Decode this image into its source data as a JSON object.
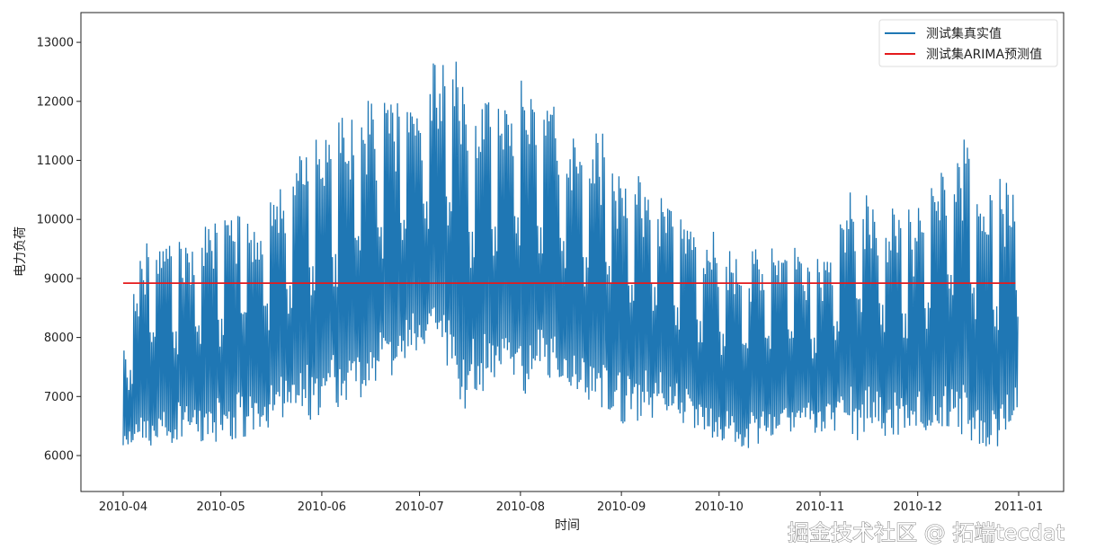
{
  "chart_data": {
    "type": "line",
    "title": "",
    "xlabel": "时间",
    "ylabel": "电力负荷",
    "xlim": [
      "2010-04-01",
      "2011-01-01"
    ],
    "ylim": [
      5400,
      13500
    ],
    "x_ticks": [
      "2010-04",
      "2010-05",
      "2010-06",
      "2010-07",
      "2010-08",
      "2010-09",
      "2010-10",
      "2010-11",
      "2010-12",
      "2011-01"
    ],
    "x_tick_dates": [
      "2010-04-01",
      "2010-05-01",
      "2010-06-01",
      "2010-07-01",
      "2010-08-01",
      "2010-09-01",
      "2010-10-01",
      "2010-11-01",
      "2010-12-01",
      "2011-01-01"
    ],
    "y_ticks": [
      6000,
      7000,
      8000,
      9000,
      10000,
      11000,
      12000,
      13000
    ],
    "grid": false,
    "legend_position": "top-right",
    "series": [
      {
        "name": "测试集真实值",
        "color": "#1f77b4",
        "week_start": [
          "2010-04-01",
          "2010-04-08",
          "2010-04-15",
          "2010-04-22",
          "2010-04-29",
          "2010-05-06",
          "2010-05-13",
          "2010-05-20",
          "2010-05-27",
          "2010-06-03",
          "2010-06-10",
          "2010-06-17",
          "2010-06-24",
          "2010-07-01",
          "2010-07-08",
          "2010-07-15",
          "2010-07-22",
          "2010-07-29",
          "2010-08-05",
          "2010-08-12",
          "2010-08-19",
          "2010-08-26",
          "2010-09-02",
          "2010-09-09",
          "2010-09-16",
          "2010-09-23",
          "2010-09-30",
          "2010-10-07",
          "2010-10-14",
          "2010-10-21",
          "2010-10-28",
          "2010-11-04",
          "2010-11-11",
          "2010-11-18",
          "2010-11-25",
          "2010-12-02",
          "2010-12-09",
          "2010-12-16",
          "2010-12-23",
          "2010-12-30"
        ],
        "weekly_max": [
          8250,
          9800,
          9700,
          9700,
          10150,
          10200,
          10300,
          10700,
          11350,
          11450,
          12000,
          12200,
          12100,
          12300,
          13100,
          12400,
          12000,
          12600,
          12300,
          11900,
          11300,
          11600,
          10800,
          10900,
          10200,
          10000,
          9800,
          9500,
          9500,
          9700,
          9300,
          9600,
          10700,
          10500,
          10300,
          10200,
          11350,
          11400,
          10600,
          10850
        ],
        "weekly_min": [
          5900,
          6000,
          6100,
          6300,
          6000,
          6200,
          6300,
          6400,
          6500,
          6700,
          6800,
          7000,
          7200,
          7700,
          7300,
          6600,
          7100,
          7000,
          7000,
          7100,
          7000,
          6600,
          6500,
          6600,
          6600,
          6300,
          6100,
          5900,
          6100,
          6300,
          6300,
          6300,
          6200,
          6300,
          6100,
          6200,
          6300,
          6100,
          5750,
          6300
        ]
      },
      {
        "name": "测试集ARIMA预测值",
        "color": "#e41a1c",
        "x": [
          "2010-04-01",
          "2010-12-31"
        ],
        "y": [
          8920,
          8920
        ]
      }
    ]
  },
  "watermark": "掘金技术社区 @ 拓端tecdat"
}
